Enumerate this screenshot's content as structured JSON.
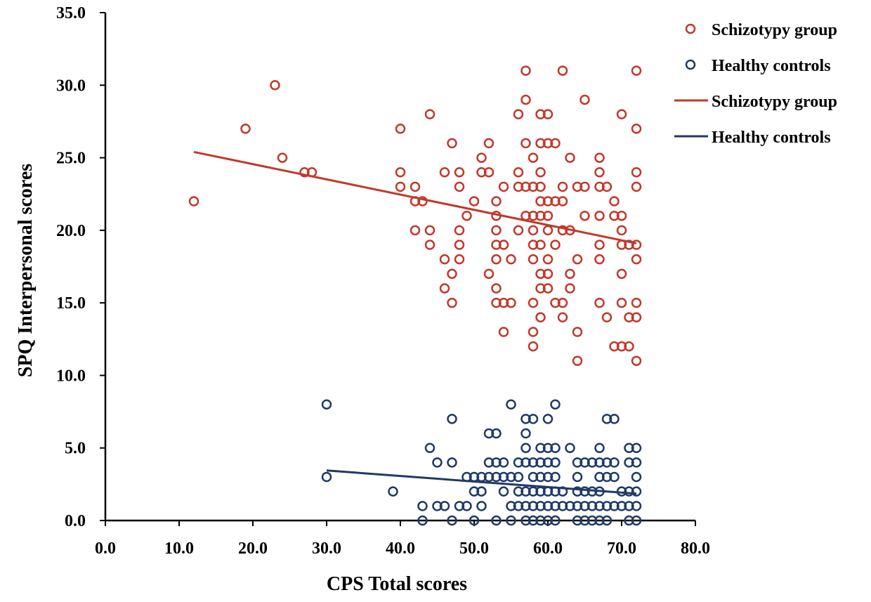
{
  "chart_data": {
    "type": "scatter",
    "title": "",
    "xlabel": "CPS Total scores",
    "ylabel": "SPQ Interpersonal scores",
    "xlim": [
      0,
      80
    ],
    "ylim": [
      0,
      35
    ],
    "xticks": [
      "0.0",
      "10.0",
      "20.0",
      "30.0",
      "40.0",
      "50.0",
      "60.0",
      "70.0",
      "80.0"
    ],
    "yticks": [
      "0.0",
      "5.0",
      "10.0",
      "15.0",
      "20.0",
      "25.0",
      "30.0",
      "35.0"
    ],
    "grid": false,
    "legend_position": "top-right",
    "legend": [
      {
        "label": "Schizotypy group",
        "kind": "marker",
        "color": "#c0392b"
      },
      {
        "label": "Healthy controls",
        "kind": "marker",
        "color": "#1f3a68"
      },
      {
        "label": "Schizotypy group",
        "kind": "line",
        "color": "#c0392b"
      },
      {
        "label": "Healthy controls",
        "kind": "line",
        "color": "#1f3a68"
      }
    ],
    "series": [
      {
        "name": "Schizotypy group",
        "kind": "scatter",
        "color": "#c0392b",
        "points": [
          [
            12,
            22
          ],
          [
            19,
            27
          ],
          [
            23,
            30
          ],
          [
            24,
            25
          ],
          [
            27,
            24
          ],
          [
            28,
            24
          ],
          [
            40,
            27
          ],
          [
            40,
            24
          ],
          [
            40,
            23
          ],
          [
            42,
            23
          ],
          [
            42,
            22
          ],
          [
            42,
            20
          ],
          [
            43,
            22
          ],
          [
            44,
            28
          ],
          [
            44,
            20
          ],
          [
            44,
            19
          ],
          [
            46,
            24
          ],
          [
            46,
            18
          ],
          [
            46,
            16
          ],
          [
            47,
            26
          ],
          [
            47,
            17
          ],
          [
            47,
            15
          ],
          [
            48,
            24
          ],
          [
            48,
            23
          ],
          [
            48,
            20
          ],
          [
            48,
            19
          ],
          [
            48,
            18
          ],
          [
            49,
            21
          ],
          [
            50,
            22
          ],
          [
            51,
            25
          ],
          [
            51,
            24
          ],
          [
            52,
            26
          ],
          [
            52,
            24
          ],
          [
            52,
            17
          ],
          [
            53,
            22
          ],
          [
            53,
            21
          ],
          [
            53,
            20
          ],
          [
            53,
            19
          ],
          [
            53,
            18
          ],
          [
            53,
            16
          ],
          [
            53,
            15
          ],
          [
            54,
            23
          ],
          [
            54,
            19
          ],
          [
            54,
            15
          ],
          [
            54,
            13
          ],
          [
            55,
            18
          ],
          [
            55,
            15
          ],
          [
            56,
            28
          ],
          [
            56,
            24
          ],
          [
            56,
            23
          ],
          [
            56,
            20
          ],
          [
            57,
            31
          ],
          [
            57,
            29
          ],
          [
            57,
            26
          ],
          [
            57,
            23
          ],
          [
            57,
            21
          ],
          [
            58,
            25
          ],
          [
            58,
            23
          ],
          [
            58,
            21
          ],
          [
            58,
            20
          ],
          [
            58,
            19
          ],
          [
            58,
            18
          ],
          [
            58,
            15
          ],
          [
            58,
            13
          ],
          [
            58,
            12
          ],
          [
            59,
            28
          ],
          [
            59,
            26
          ],
          [
            59,
            24
          ],
          [
            59,
            23
          ],
          [
            59,
            22
          ],
          [
            59,
            21
          ],
          [
            59,
            19
          ],
          [
            59,
            17
          ],
          [
            59,
            16
          ],
          [
            59,
            14
          ],
          [
            60,
            28
          ],
          [
            60,
            26
          ],
          [
            60,
            22
          ],
          [
            60,
            21
          ],
          [
            60,
            20
          ],
          [
            60,
            18
          ],
          [
            60,
            17
          ],
          [
            60,
            16
          ],
          [
            61,
            26
          ],
          [
            61,
            22
          ],
          [
            61,
            19
          ],
          [
            61,
            15
          ],
          [
            62,
            31
          ],
          [
            62,
            23
          ],
          [
            62,
            22
          ],
          [
            62,
            20
          ],
          [
            62,
            15
          ],
          [
            62,
            14
          ],
          [
            63,
            25
          ],
          [
            63,
            20
          ],
          [
            63,
            17
          ],
          [
            63,
            16
          ],
          [
            64,
            23
          ],
          [
            64,
            18
          ],
          [
            64,
            13
          ],
          [
            64,
            11
          ],
          [
            65,
            29
          ],
          [
            65,
            23
          ],
          [
            65,
            21
          ],
          [
            67,
            25
          ],
          [
            67,
            24
          ],
          [
            67,
            23
          ],
          [
            67,
            21
          ],
          [
            67,
            19
          ],
          [
            67,
            18
          ],
          [
            67,
            15
          ],
          [
            68,
            23
          ],
          [
            68,
            14
          ],
          [
            69,
            22
          ],
          [
            69,
            21
          ],
          [
            69,
            12
          ],
          [
            70,
            28
          ],
          [
            70,
            21
          ],
          [
            70,
            20
          ],
          [
            70,
            19
          ],
          [
            70,
            17
          ],
          [
            70,
            15
          ],
          [
            70,
            12
          ],
          [
            71,
            19
          ],
          [
            71,
            14
          ],
          [
            71,
            12
          ],
          [
            72,
            31
          ],
          [
            72,
            27
          ],
          [
            72,
            24
          ],
          [
            72,
            23
          ],
          [
            72,
            19
          ],
          [
            72,
            18
          ],
          [
            72,
            15
          ],
          [
            72,
            14
          ],
          [
            72,
            11
          ]
        ]
      },
      {
        "name": "Healthy controls",
        "kind": "scatter",
        "color": "#1f3a68",
        "points": [
          [
            30,
            8
          ],
          [
            30,
            3
          ],
          [
            39,
            2
          ],
          [
            43,
            1
          ],
          [
            43,
            0
          ],
          [
            44,
            5
          ],
          [
            45,
            4
          ],
          [
            45,
            1
          ],
          [
            46,
            1
          ],
          [
            47,
            7
          ],
          [
            47,
            4
          ],
          [
            47,
            0
          ],
          [
            48,
            1
          ],
          [
            49,
            3
          ],
          [
            49,
            1
          ],
          [
            50,
            3
          ],
          [
            50,
            2
          ],
          [
            50,
            0
          ],
          [
            51,
            3
          ],
          [
            51,
            2
          ],
          [
            51,
            1
          ],
          [
            52,
            6
          ],
          [
            52,
            4
          ],
          [
            52,
            3
          ],
          [
            53,
            6
          ],
          [
            53,
            4
          ],
          [
            53,
            3
          ],
          [
            53,
            0
          ],
          [
            54,
            4
          ],
          [
            54,
            3
          ],
          [
            54,
            2
          ],
          [
            55,
            8
          ],
          [
            55,
            3
          ],
          [
            55,
            1
          ],
          [
            55,
            0
          ],
          [
            56,
            4
          ],
          [
            56,
            3
          ],
          [
            56,
            2
          ],
          [
            56,
            1
          ],
          [
            57,
            7
          ],
          [
            57,
            6
          ],
          [
            57,
            5
          ],
          [
            57,
            4
          ],
          [
            57,
            2
          ],
          [
            57,
            1
          ],
          [
            57,
            0
          ],
          [
            58,
            7
          ],
          [
            58,
            4
          ],
          [
            58,
            3
          ],
          [
            58,
            2
          ],
          [
            58,
            1
          ],
          [
            58,
            0
          ],
          [
            59,
            5
          ],
          [
            59,
            4
          ],
          [
            59,
            3
          ],
          [
            59,
            2
          ],
          [
            59,
            1
          ],
          [
            59,
            0
          ],
          [
            60,
            7
          ],
          [
            60,
            5
          ],
          [
            60,
            4
          ],
          [
            60,
            3
          ],
          [
            60,
            2
          ],
          [
            60,
            1
          ],
          [
            60,
            0
          ],
          [
            61,
            8
          ],
          [
            61,
            5
          ],
          [
            61,
            4
          ],
          [
            61,
            3
          ],
          [
            61,
            2
          ],
          [
            61,
            1
          ],
          [
            61,
            0
          ],
          [
            62,
            2
          ],
          [
            62,
            1
          ],
          [
            63,
            5
          ],
          [
            63,
            1
          ],
          [
            64,
            4
          ],
          [
            64,
            3
          ],
          [
            64,
            2
          ],
          [
            64,
            1
          ],
          [
            64,
            0
          ],
          [
            65,
            4
          ],
          [
            65,
            2
          ],
          [
            65,
            1
          ],
          [
            65,
            0
          ],
          [
            66,
            4
          ],
          [
            66,
            2
          ],
          [
            66,
            1
          ],
          [
            66,
            0
          ],
          [
            67,
            5
          ],
          [
            67,
            4
          ],
          [
            67,
            3
          ],
          [
            67,
            2
          ],
          [
            67,
            1
          ],
          [
            67,
            0
          ],
          [
            68,
            7
          ],
          [
            68,
            4
          ],
          [
            68,
            3
          ],
          [
            68,
            1
          ],
          [
            68,
            0
          ],
          [
            69,
            7
          ],
          [
            69,
            4
          ],
          [
            69,
            3
          ],
          [
            69,
            1
          ],
          [
            70,
            2
          ],
          [
            70,
            1
          ],
          [
            71,
            5
          ],
          [
            71,
            4
          ],
          [
            71,
            2
          ],
          [
            71,
            1
          ],
          [
            71,
            0
          ],
          [
            72,
            5
          ],
          [
            72,
            4
          ],
          [
            72,
            3
          ],
          [
            72,
            2
          ],
          [
            72,
            1
          ],
          [
            72,
            0
          ]
        ]
      },
      {
        "name": "Schizotypy group",
        "kind": "fit-line",
        "color": "#c0392b",
        "points": [
          [
            12,
            25.4
          ],
          [
            72,
            19.1
          ]
        ]
      },
      {
        "name": "Healthy controls",
        "kind": "fit-line",
        "color": "#1f3a68",
        "points": [
          [
            30,
            3.45
          ],
          [
            72,
            1.85
          ]
        ]
      }
    ]
  }
}
